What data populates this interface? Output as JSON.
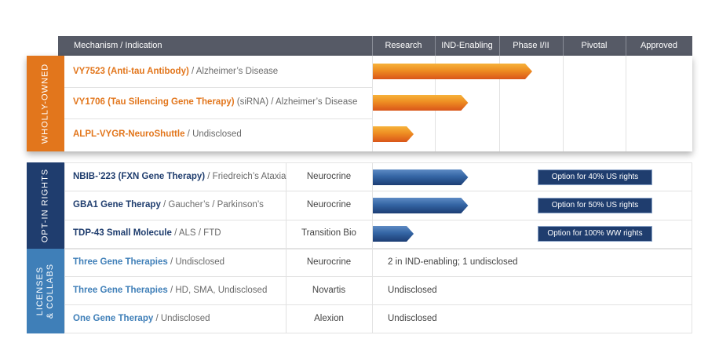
{
  "header": {
    "mechanism": "Mechanism / Indication",
    "stages": [
      "Research",
      "IND-Enabling",
      "Phase I/II",
      "Pivotal",
      "Approved"
    ]
  },
  "bands": {
    "wholly_owned": "WHOLLY-OWNED",
    "opt_in": "OPT-IN RIGHTS",
    "licenses_line1": "LICENSES",
    "licenses_line2": "& COLLABS"
  },
  "colors": {
    "orange": "#e2761c",
    "navy": "#1f3d6e",
    "blue": "#3f7fb8",
    "header": "#565a66"
  },
  "wholly_owned": [
    {
      "program": "VY7523 (Anti-tau Antibody)",
      "indication": " / Alzheimer’s Disease",
      "progress": 0.5
    },
    {
      "program": "VY1706 (Tau Silencing Gene Therapy)",
      "indication": " (siRNA) / Alzheimer’s Disease",
      "progress": 0.3
    },
    {
      "program": "ALPL-VYGR-NeuroShuttle",
      "indication": " / Undisclosed",
      "progress": 0.13
    }
  ],
  "opt_in": [
    {
      "program": "NBIB-’223 (FXN Gene Therapy)",
      "indication": " / Friedreich’s Ataxia",
      "partner": "Neurocrine",
      "progress": 0.3,
      "option": "Option for 40% US rights"
    },
    {
      "program": "GBA1 Gene Therapy",
      "indication": " / Gaucher’s / Parkinson’s",
      "partner": "Neurocrine",
      "progress": 0.3,
      "option": "Option for 50% US rights"
    },
    {
      "program": "TDP-43 Small Molecule",
      "indication": " / ALS / FTD",
      "partner": "Transition Bio",
      "progress": 0.13,
      "option": "Option for 100% WW rights"
    }
  ],
  "licenses": [
    {
      "program": "Three Gene Therapies",
      "indication": " / Undisclosed",
      "partner": "Neurocrine",
      "status": "2 in IND-enabling; 1 undisclosed"
    },
    {
      "program": "Three Gene Therapies",
      "indication": " / HD, SMA, Undisclosed",
      "partner": "Novartis",
      "status": "Undisclosed"
    },
    {
      "program": "One Gene Therapy",
      "indication": " / Undisclosed",
      "partner": "Alexion",
      "status": "Undisclosed"
    }
  ]
}
